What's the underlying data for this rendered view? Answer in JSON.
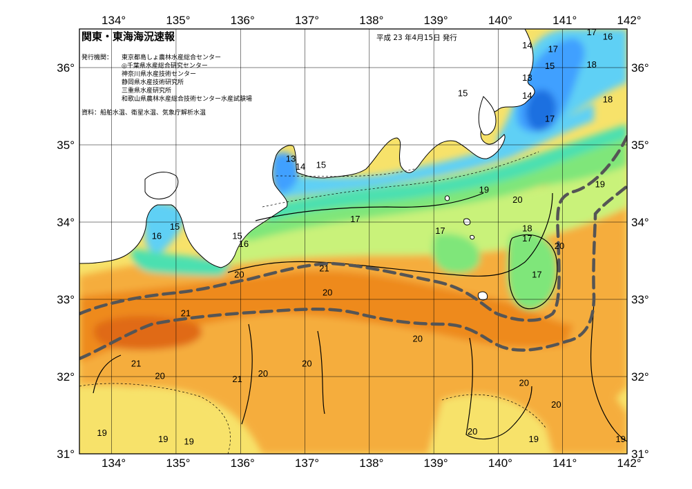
{
  "map": {
    "title": "関東・東海海況速報",
    "issue_date": "平成 23 年4月15日 発行",
    "agencies_label": "発行機関：",
    "agencies": [
      "東京都島しょ農林水産総合センター",
      "◎千葉県水産総合研究センター",
      "神奈川県水産技術センター",
      "静岡県水産技術研究所",
      "三重県水産研究所",
      "和歌山県農林水産総合技術センター水産試験場"
    ],
    "source": "資料：船舶水温、衛星水温、気象庁解析水温",
    "lon_ticks": [
      "134°",
      "135°",
      "136°",
      "137°",
      "138°",
      "139°",
      "140°",
      "141°",
      "142°"
    ],
    "lat_ticks": [
      "36°",
      "35°",
      "34°",
      "33°",
      "32°",
      "31°"
    ],
    "extent": {
      "lon": [
        133.5,
        142
      ],
      "lat": [
        31,
        36.5
      ]
    },
    "colors": {
      "land": "#ffffff",
      "coastline": "#000000",
      "grid": "#000000",
      "kuroshio_axis": "#555555",
      "t13": "#1f6fe0",
      "t14": "#3fa0ff",
      "t15": "#5ed0f5",
      "t16": "#4ce0b0",
      "t17": "#7fe67a",
      "t18": "#c9f27a",
      "t19": "#f7e26a",
      "t20": "#f5ad3e",
      "t21": "#ee8a1e",
      "t22": "#e06a18"
    },
    "isotherm_labels": [
      {
        "text": "14",
        "lon": 140.45,
        "lat": 36.25
      },
      {
        "text": "17",
        "lon": 141.45,
        "lat": 36.42
      },
      {
        "text": "16",
        "lon": 141.7,
        "lat": 36.36
      },
      {
        "text": "17",
        "lon": 140.85,
        "lat": 36.2
      },
      {
        "text": "15",
        "lon": 140.8,
        "lat": 35.98
      },
      {
        "text": "18",
        "lon": 141.45,
        "lat": 36.0
      },
      {
        "text": "13",
        "lon": 140.45,
        "lat": 35.83
      },
      {
        "text": "14",
        "lon": 140.45,
        "lat": 35.6
      },
      {
        "text": "15",
        "lon": 139.45,
        "lat": 35.63
      },
      {
        "text": "18",
        "lon": 141.7,
        "lat": 35.55
      },
      {
        "text": "17",
        "lon": 140.8,
        "lat": 35.3
      },
      {
        "text": "13",
        "lon": 136.78,
        "lat": 34.78
      },
      {
        "text": "14",
        "lon": 136.93,
        "lat": 34.68
      },
      {
        "text": "15",
        "lon": 137.25,
        "lat": 34.7
      },
      {
        "text": "19",
        "lon": 139.78,
        "lat": 34.38
      },
      {
        "text": "20",
        "lon": 140.3,
        "lat": 34.25
      },
      {
        "text": "19",
        "lon": 141.58,
        "lat": 34.45
      },
      {
        "text": "17",
        "lon": 137.78,
        "lat": 34.0
      },
      {
        "text": "15",
        "lon": 134.98,
        "lat": 33.9
      },
      {
        "text": "16",
        "lon": 134.7,
        "lat": 33.78
      },
      {
        "text": "15",
        "lon": 135.95,
        "lat": 33.78
      },
      {
        "text": "16",
        "lon": 136.05,
        "lat": 33.68
      },
      {
        "text": "17",
        "lon": 139.1,
        "lat": 33.85
      },
      {
        "text": "18",
        "lon": 140.45,
        "lat": 33.88
      },
      {
        "text": "17",
        "lon": 140.45,
        "lat": 33.75
      },
      {
        "text": "20",
        "lon": 140.95,
        "lat": 33.65
      },
      {
        "text": "17",
        "lon": 140.6,
        "lat": 33.28
      },
      {
        "text": "20",
        "lon": 135.98,
        "lat": 33.28
      },
      {
        "text": "21",
        "lon": 137.3,
        "lat": 33.36
      },
      {
        "text": "20",
        "lon": 137.35,
        "lat": 33.05
      },
      {
        "text": "21",
        "lon": 135.15,
        "lat": 32.78
      },
      {
        "text": "20",
        "lon": 138.75,
        "lat": 32.45
      },
      {
        "text": "21",
        "lon": 134.38,
        "lat": 32.13
      },
      {
        "text": "20",
        "lon": 137.03,
        "lat": 32.13
      },
      {
        "text": "20",
        "lon": 136.35,
        "lat": 32.0
      },
      {
        "text": "20",
        "lon": 134.75,
        "lat": 31.97
      },
      {
        "text": "21",
        "lon": 135.95,
        "lat": 31.93
      },
      {
        "text": "20",
        "lon": 140.4,
        "lat": 31.88
      },
      {
        "text": "20",
        "lon": 140.9,
        "lat": 31.6
      },
      {
        "text": "19",
        "lon": 133.85,
        "lat": 31.23
      },
      {
        "text": "19",
        "lon": 134.8,
        "lat": 31.15
      },
      {
        "text": "19",
        "lon": 135.2,
        "lat": 31.12
      },
      {
        "text": "20",
        "lon": 139.6,
        "lat": 31.25
      },
      {
        "text": "19",
        "lon": 140.55,
        "lat": 31.15
      },
      {
        "text": "19",
        "lon": 141.9,
        "lat": 31.15
      }
    ]
  }
}
